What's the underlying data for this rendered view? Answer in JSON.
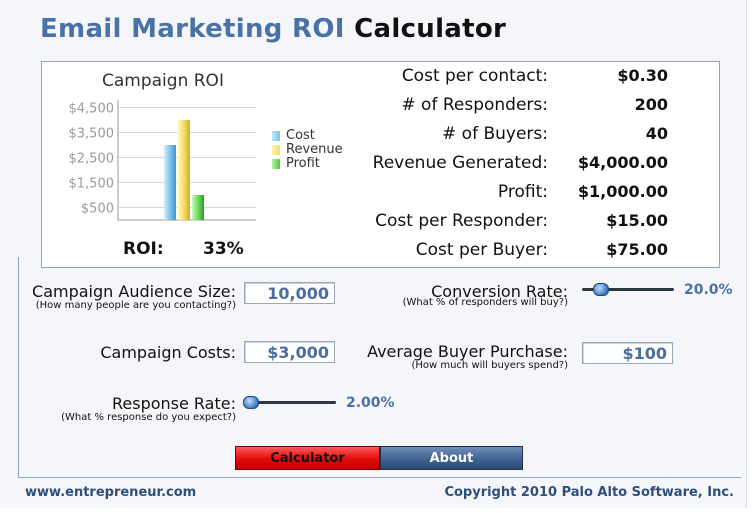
{
  "title": {
    "part1": "Email Marketing ROI",
    "part2": "Calculator"
  },
  "chart_data": {
    "type": "bar",
    "title": "Campaign ROI",
    "categories": [
      "Cost",
      "Revenue",
      "Profit"
    ],
    "values": [
      3000,
      4000,
      1000
    ],
    "colors": [
      "#7fc4ec",
      "#f5dc6a",
      "#6fdc5a"
    ],
    "ytick_labels": [
      "$4,500",
      "$3,500",
      "$2,500",
      "$1,500",
      "$500"
    ],
    "ytick_values": [
      4500,
      3500,
      2500,
      1500,
      500
    ],
    "ylim": [
      0,
      4800
    ],
    "legend_position": "right"
  },
  "roi": {
    "label": "ROI:",
    "value": "33%"
  },
  "metrics": [
    {
      "label": "Cost per contact:",
      "value": "$0.30"
    },
    {
      "label": "# of Responders:",
      "value": "200"
    },
    {
      "label": "# of Buyers:",
      "value": "40"
    },
    {
      "label": "Revenue Generated:",
      "value": "$4,000.00"
    },
    {
      "label": "Profit:",
      "value": "$1,000.00"
    },
    {
      "label": "Cost per Responder:",
      "value": "$15.00"
    },
    {
      "label": "Cost per Buyer:",
      "value": "$75.00"
    }
  ],
  "inputs": {
    "audience": {
      "label": "Campaign Audience Size:",
      "hint": "(How many people are you contacting?)",
      "value": "10,000"
    },
    "costs": {
      "label": "Campaign Costs:",
      "value": "$3,000"
    },
    "response": {
      "label": "Response Rate:",
      "hint": "(What % response do you expect?)",
      "value": "2.00%",
      "level": 0.06
    },
    "conversion": {
      "label": "Conversion Rate:",
      "hint": "(What % of responders will buy?)",
      "value": "20.0%",
      "level": 0.2
    },
    "purchase": {
      "label": "Average Buyer Purchase:",
      "hint": "(How much will buyers spend?)",
      "value": "$100"
    }
  },
  "buttons": {
    "calculator": "Calculator",
    "about": "About"
  },
  "footer": {
    "site": "www.entrepreneur.com",
    "copyright": "Copyright 2010 Palo Alto Software, Inc."
  }
}
